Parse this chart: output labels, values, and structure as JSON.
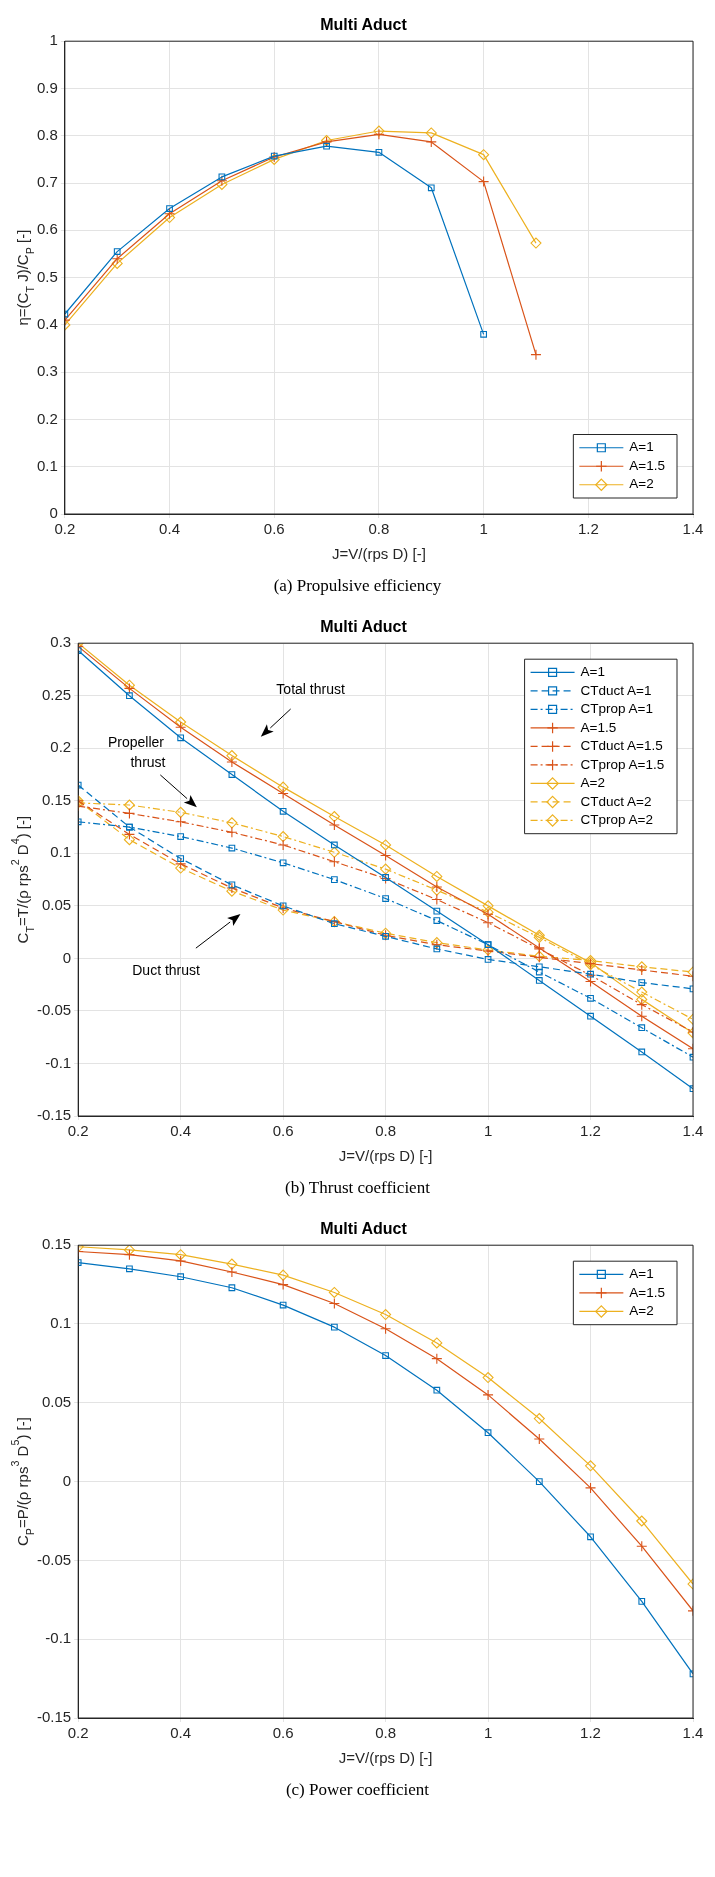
{
  "chart_data": [
    {
      "type": "line",
      "title": "Multi Aduct",
      "xlabel": "J=V/(rps D) [-]",
      "ylabel": "η=(C$_{T}$ J)/C$_{P}$ [-]",
      "xlim": [
        0.2,
        1.4
      ],
      "xticks": [
        0.2,
        0.4,
        0.6,
        0.8,
        1,
        1.2,
        1.4
      ],
      "ylim": [
        0,
        1
      ],
      "yticks": [
        0,
        0.1,
        0.2,
        0.3,
        0.4,
        0.5,
        0.6,
        0.7,
        0.8,
        0.9,
        1
      ],
      "grid": true,
      "legend": "bottom right",
      "line_style": "solid",
      "series": [
        {
          "name": "A=1",
          "color": "#0072bd",
          "marker": "square",
          "x": [
            0.2,
            0.3,
            0.4,
            0.5,
            0.6,
            0.7,
            0.8,
            0.9,
            1.0
          ],
          "values": [
            0.423,
            0.555,
            0.646,
            0.713,
            0.757,
            0.778,
            0.765,
            0.69,
            0.38
          ]
        },
        {
          "name": "A=1.5",
          "color": "#d95319",
          "marker": "cross",
          "x": [
            0.2,
            0.3,
            0.4,
            0.5,
            0.6,
            0.7,
            0.8,
            0.9,
            1.0,
            1.1
          ],
          "values": [
            0.41,
            0.54,
            0.635,
            0.705,
            0.755,
            0.787,
            0.803,
            0.787,
            0.703,
            0.337
          ]
        },
        {
          "name": "A=2",
          "color": "#edb120",
          "marker": "diamond",
          "x": [
            0.2,
            0.3,
            0.4,
            0.5,
            0.6,
            0.7,
            0.8,
            0.9,
            1.0,
            1.1
          ],
          "values": [
            0.4,
            0.53,
            0.627,
            0.697,
            0.75,
            0.79,
            0.81,
            0.806,
            0.76,
            0.573
          ]
        }
      ],
      "annotations": [
        "(a)  Propulsive efficiency"
      ]
    },
    {
      "type": "line",
      "title": "Multi Aduct",
      "xlabel": "J=V/(rps D) [-]",
      "ylabel": "C$_{T}$=T/(ρ rps$^{2}$ D$^{4}$) [-]",
      "xlim": [
        0.2,
        1.4
      ],
      "xticks": [
        0.2,
        0.4,
        0.6,
        0.8,
        1,
        1.2,
        1.4
      ],
      "ylim": [
        -0.15,
        0.3
      ],
      "yticks": [
        -0.15,
        -0.1,
        -0.05,
        0,
        0.05,
        0.1,
        0.15,
        0.2,
        0.25,
        0.3
      ],
      "grid": true,
      "legend": "top right",
      "x": [
        0.2,
        0.3,
        0.4,
        0.5,
        0.6,
        0.7,
        0.8,
        0.9,
        1.0,
        1.1,
        1.2,
        1.3,
        1.4
      ],
      "series": [
        {
          "name": "A=1",
          "color": "#0072bd",
          "marker": "square",
          "line_style": "solid",
          "values": [
            0.293,
            0.25,
            0.21,
            0.175,
            0.14,
            0.108,
            0.077,
            0.045,
            0.013,
            -0.021,
            -0.055,
            -0.089,
            -0.124
          ]
        },
        {
          "name": "CTduct A=1",
          "color": "#0072bd",
          "marker": "square",
          "line_style": "dashed",
          "values": [
            0.165,
            0.125,
            0.095,
            0.07,
            0.05,
            0.033,
            0.021,
            0.009,
            -0.001,
            -0.008,
            -0.015,
            -0.023,
            -0.029
          ]
        },
        {
          "name": "CTprop A=1",
          "color": "#0072bd",
          "marker": "square",
          "line_style": "dashdot",
          "values": [
            0.13,
            0.125,
            0.116,
            0.105,
            0.091,
            0.075,
            0.057,
            0.036,
            0.013,
            -0.013,
            -0.038,
            -0.066,
            -0.094
          ]
        },
        {
          "name": "A=1.5",
          "color": "#d95319",
          "marker": "cross",
          "line_style": "solid",
          "values": [
            0.297,
            0.257,
            0.22,
            0.187,
            0.157,
            0.127,
            0.098,
            0.068,
            0.042,
            0.01,
            -0.022,
            -0.055,
            -0.086
          ]
        },
        {
          "name": "CTduct A=1.5",
          "color": "#d95319",
          "marker": "cross",
          "line_style": "dashed",
          "values": [
            0.15,
            0.118,
            0.09,
            0.067,
            0.048,
            0.035,
            0.022,
            0.013,
            0.007,
            0.001,
            -0.005,
            -0.011,
            -0.017
          ]
        },
        {
          "name": "CTprop A=1.5",
          "color": "#d95319",
          "marker": "cross",
          "line_style": "dashdot",
          "values": [
            0.145,
            0.138,
            0.13,
            0.12,
            0.108,
            0.092,
            0.076,
            0.056,
            0.034,
            0.009,
            -0.016,
            -0.044,
            -0.07
          ]
        },
        {
          "name": "A=2",
          "color": "#edb120",
          "marker": "diamond",
          "line_style": "solid",
          "values": [
            0.3,
            0.26,
            0.225,
            0.193,
            0.163,
            0.135,
            0.108,
            0.078,
            0.05,
            0.022,
            -0.004,
            -0.039,
            -0.071
          ]
        },
        {
          "name": "CTduct A=2",
          "color": "#edb120",
          "marker": "diamond",
          "line_style": "dashed",
          "values": [
            0.15,
            0.113,
            0.086,
            0.064,
            0.046,
            0.035,
            0.024,
            0.015,
            0.008,
            0.002,
            -0.002,
            -0.008,
            -0.013
          ]
        },
        {
          "name": "CTprop A=2",
          "color": "#edb120",
          "marker": "diamond",
          "line_style": "dashdot",
          "values": [
            0.148,
            0.146,
            0.139,
            0.129,
            0.116,
            0.101,
            0.085,
            0.065,
            0.044,
            0.02,
            -0.006,
            -0.032,
            -0.058
          ]
        }
      ],
      "annotations": [
        "Total thrust",
        "Propeller thrust",
        "Duct thrust",
        "(b)  Thrust coefficient"
      ]
    },
    {
      "type": "line",
      "title": "Multi Aduct",
      "xlabel": "J=V/(rps D) [-]",
      "ylabel": "C$_{P}$=P/(ρ rps$^{3}$ D$^{5}$) [-]",
      "xlim": [
        0.2,
        1.4
      ],
      "xticks": [
        0.2,
        0.4,
        0.6,
        0.8,
        1,
        1.2,
        1.4
      ],
      "ylim": [
        -0.15,
        0.15
      ],
      "yticks": [
        -0.15,
        -0.1,
        -0.05,
        0,
        0.05,
        0.1,
        0.15
      ],
      "grid": true,
      "legend": "top right",
      "line_style": "solid",
      "x": [
        0.2,
        0.3,
        0.4,
        0.5,
        0.6,
        0.7,
        0.8,
        0.9,
        1.0,
        1.1,
        1.2,
        1.3,
        1.4
      ],
      "series": [
        {
          "name": "A=1",
          "color": "#0072bd",
          "marker": "square",
          "values": [
            0.139,
            0.135,
            0.13,
            0.123,
            0.112,
            0.098,
            0.08,
            0.058,
            0.031,
            0.0,
            -0.035,
            -0.076,
            -0.122
          ]
        },
        {
          "name": "A=1.5",
          "color": "#d95319",
          "marker": "cross",
          "values": [
            0.146,
            0.144,
            0.14,
            0.133,
            0.125,
            0.113,
            0.097,
            0.078,
            0.055,
            0.027,
            -0.004,
            -0.041,
            -0.082
          ]
        },
        {
          "name": "A=2",
          "color": "#edb120",
          "marker": "diamond",
          "values": [
            0.149,
            0.147,
            0.144,
            0.138,
            0.131,
            0.12,
            0.106,
            0.088,
            0.066,
            0.04,
            0.01,
            -0.025,
            -0.065
          ]
        }
      ],
      "annotations": [
        "(c)  Power coefficient"
      ]
    }
  ]
}
